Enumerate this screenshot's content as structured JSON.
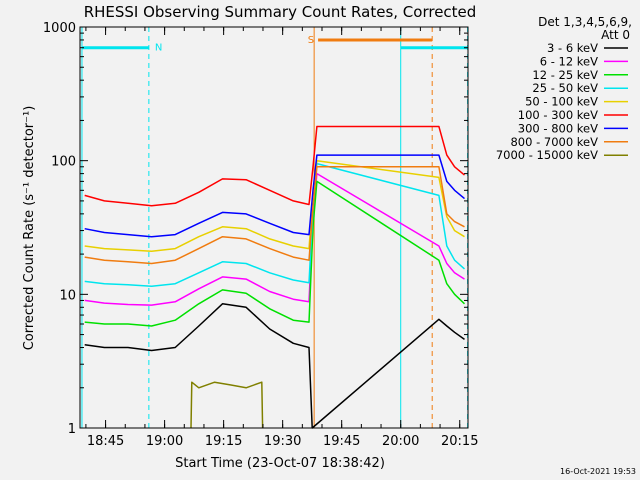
{
  "chart_data": {
    "type": "line",
    "title": "RHESSI Observing Summary Count Rates, Corrected",
    "xlabel": "Start Time (23-Oct-07 18:38:42)",
    "ylabel": "Corrected Count Rate (s⁻¹ detector⁻¹)",
    "yscale": "log",
    "ylim": [
      1,
      1000
    ],
    "xlim_minutes": [
      -0.2,
      98.4
    ],
    "x_tick_labels": [
      "18:45",
      "19:00",
      "19:15",
      "19:30",
      "19:45",
      "20:00",
      "20:15"
    ],
    "x_tick_minutes": [
      6.3,
      21.3,
      36.3,
      51.3,
      66.3,
      81.3,
      96.3
    ],
    "y_tick_labels": [
      "1",
      "10",
      "100",
      "1000"
    ],
    "y_tick_values": [
      1,
      10,
      100,
      1000
    ],
    "legend_header": "Det 1,3,4,5,6,9,",
    "legend_att": "Att 0",
    "legend_position": "top-right",
    "timestamp": "16-Oct-2021 19:53",
    "flags": [
      {
        "label": "N",
        "color": "#00e5ee",
        "x_start": 0.3,
        "x_end": 17.3,
        "y": 700
      },
      {
        "label": "S",
        "color": "#f07c10",
        "x_start": 60.3,
        "x_end": 89.3,
        "y": 800
      },
      {
        "label": "",
        "color": "#00e5ee",
        "x_start": 81.3,
        "x_end": 98.3,
        "y": 700
      }
    ],
    "vertical_lines": [
      {
        "x": 0.3,
        "color": "#00e5ee",
        "style": "solid"
      },
      {
        "x": 17.3,
        "color": "#00e5ee",
        "style": "dashed"
      },
      {
        "x": 59.3,
        "color": "#f07c10",
        "style": "solid"
      },
      {
        "x": 81.3,
        "color": "#00e5ee",
        "style": "solid"
      },
      {
        "x": 89.3,
        "color": "#f07c10",
        "style": "dashed"
      },
      {
        "x": 98.3,
        "color": "#00e5ee",
        "style": "dashed"
      }
    ],
    "series": [
      {
        "name": "3 - 6 keV",
        "color": "#000000",
        "x": [
          1,
          6,
          12,
          18,
          24,
          30,
          36,
          42,
          48,
          54,
          58,
          58.8,
          91,
          93,
          95,
          97.5
        ],
        "y": [
          4.2,
          4.0,
          4.0,
          3.8,
          4.0,
          5.8,
          8.5,
          8.0,
          5.5,
          4.3,
          4.0,
          1.0,
          6.5,
          5.8,
          5.2,
          4.6
        ]
      },
      {
        "name": "6 - 12 keV",
        "color": "#ff00ff",
        "x": [
          1,
          6,
          12,
          18,
          24,
          30,
          36,
          42,
          48,
          54,
          58,
          59,
          60,
          91,
          93,
          95,
          97.5
        ],
        "y": [
          9.0,
          8.6,
          8.4,
          8.3,
          8.8,
          11.0,
          13.5,
          13.0,
          10.5,
          9.2,
          8.8,
          40,
          80,
          23,
          17,
          14.5,
          13
        ]
      },
      {
        "name": "12 - 25 keV",
        "color": "#00e000",
        "x": [
          1,
          6,
          12,
          18,
          24,
          30,
          36,
          42,
          48,
          54,
          58,
          59,
          60,
          91,
          93,
          95,
          97.5
        ],
        "y": [
          6.2,
          6.0,
          6.0,
          5.8,
          6.4,
          8.5,
          10.8,
          10.2,
          7.8,
          6.4,
          6.2,
          32,
          70,
          18,
          12,
          10,
          8.5
        ]
      },
      {
        "name": "25 - 50 keV",
        "color": "#00e5ee",
        "x": [
          1,
          6,
          12,
          18,
          24,
          30,
          36,
          42,
          48,
          54,
          58,
          59,
          60,
          91,
          93,
          95,
          97.5
        ],
        "y": [
          12.5,
          12.0,
          11.8,
          11.5,
          12.0,
          14.5,
          17.5,
          17.0,
          14.5,
          12.8,
          12.2,
          45,
          95,
          55,
          23,
          18,
          15.5
        ]
      },
      {
        "name": "50 - 100 keV",
        "color": "#e8d000",
        "x": [
          1,
          6,
          12,
          18,
          24,
          30,
          36,
          42,
          48,
          54,
          58,
          59,
          60,
          91,
          93,
          95,
          97.5
        ],
        "y": [
          23.0,
          22.0,
          21.5,
          21.0,
          22.0,
          27.0,
          32.0,
          31.0,
          26.0,
          23.0,
          22.0,
          55,
          100,
          75,
          38,
          30,
          27
        ]
      },
      {
        "name": "100 - 300 keV",
        "color": "#ff0000",
        "x": [
          1,
          6,
          12,
          18,
          24,
          30,
          36,
          42,
          48,
          54,
          58,
          59,
          60,
          91,
          93,
          95,
          97.5
        ],
        "y": [
          55,
          50,
          48,
          46,
          48,
          58,
          73,
          72,
          60,
          50,
          47,
          90,
          180,
          180,
          110,
          90,
          78
        ]
      },
      {
        "name": "300 - 800 keV",
        "color": "#0000ff",
        "x": [
          1,
          6,
          12,
          18,
          24,
          30,
          36,
          42,
          48,
          54,
          58,
          59,
          60,
          91,
          93,
          95,
          97.5
        ],
        "y": [
          31,
          29,
          28,
          27,
          28,
          34,
          41,
          40,
          34,
          29,
          28,
          60,
          110,
          110,
          70,
          60,
          52
        ]
      },
      {
        "name": "800 - 7000 keV",
        "color": "#f07c10",
        "x": [
          1,
          6,
          12,
          18,
          24,
          30,
          36,
          42,
          48,
          54,
          58,
          59,
          60,
          91,
          93,
          95,
          97.5
        ],
        "y": [
          19,
          18,
          17.5,
          17,
          18,
          22,
          27,
          26,
          22,
          19,
          18,
          45,
          90,
          90,
          40,
          35,
          32
        ]
      },
      {
        "name": "7000 - 15000 keV",
        "color": "#808000",
        "x": [
          28,
          28.2,
          30,
          34,
          38,
          42,
          46,
          46.2
        ],
        "y": [
          1.0,
          2.2,
          2.0,
          2.2,
          2.1,
          2.0,
          2.2,
          1.0
        ]
      }
    ]
  }
}
